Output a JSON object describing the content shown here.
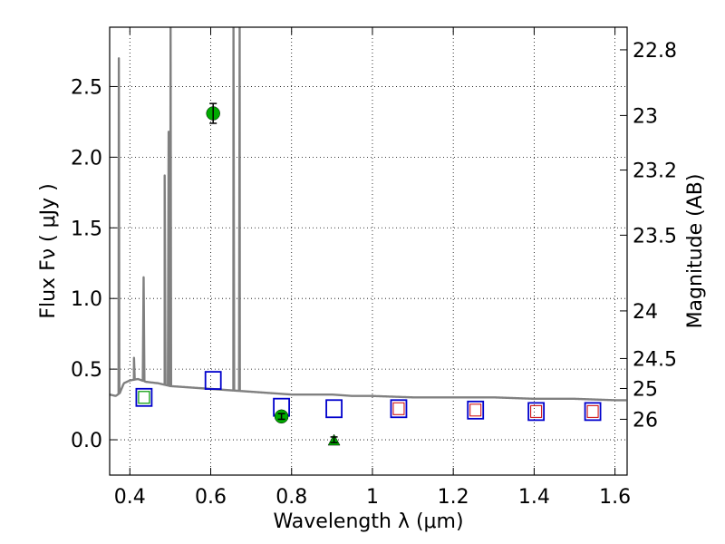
{
  "chart_data": {
    "type": "scatter",
    "xlabel": "Wavelength  λ (μm)",
    "ylabel": "Flux  Fν  ( μJy )",
    "y2label": "Magnitude (AB)",
    "xlim": [
      0.35,
      1.63
    ],
    "ylim": [
      -0.25,
      2.92
    ],
    "xticks": [
      0.4,
      0.6,
      0.8,
      1.0,
      1.2,
      1.4,
      1.6
    ],
    "xtick_labels": [
      "0.4",
      "0.6",
      "0.8",
      "1",
      "1.2",
      "1.4",
      "1.6"
    ],
    "yticks": [
      0.0,
      0.5,
      1.0,
      1.5,
      2.0,
      2.5
    ],
    "ytick_labels": [
      "0.0",
      "0.5",
      "1.0",
      "1.5",
      "2.0",
      "2.5"
    ],
    "y2ticks": [
      {
        "label": "22.8",
        "flux": 2.76
      },
      {
        "label": "23",
        "flux": 2.295
      },
      {
        "label": "23.2",
        "flux": 1.909
      },
      {
        "label": "23.5",
        "flux": 1.448
      },
      {
        "label": "24",
        "flux": 0.912
      },
      {
        "label": "24.5",
        "flux": 0.575
      },
      {
        "label": "25",
        "flux": 0.363
      },
      {
        "label": "26",
        "flux": 0.145
      }
    ],
    "grid": true,
    "grid_style": "dotted",
    "colors": {
      "sed": "#808080",
      "model_box": "#0000cc",
      "nir_inner": "#cc0000",
      "optical_inner": "#009900",
      "detection": "#00aa00",
      "errorbar": "#000000"
    },
    "sed_model": {
      "color": "#808080",
      "continuum": [
        [
          0.35,
          0.32
        ],
        [
          0.365,
          0.31
        ],
        [
          0.375,
          0.33
        ],
        [
          0.385,
          0.4
        ],
        [
          0.4,
          0.42
        ],
        [
          0.42,
          0.43
        ],
        [
          0.44,
          0.41
        ],
        [
          0.47,
          0.4
        ],
        [
          0.5,
          0.38
        ],
        [
          0.55,
          0.37
        ],
        [
          0.6,
          0.36
        ],
        [
          0.65,
          0.35
        ],
        [
          0.7,
          0.34
        ],
        [
          0.75,
          0.33
        ],
        [
          0.8,
          0.32
        ],
        [
          0.85,
          0.32
        ],
        [
          0.9,
          0.32
        ],
        [
          0.95,
          0.31
        ],
        [
          1.0,
          0.31
        ],
        [
          1.1,
          0.3
        ],
        [
          1.2,
          0.3
        ],
        [
          1.3,
          0.3
        ],
        [
          1.4,
          0.29
        ],
        [
          1.5,
          0.29
        ],
        [
          1.6,
          0.28
        ],
        [
          1.63,
          0.28
        ]
      ],
      "emission_lines": [
        {
          "x": 0.3727,
          "peak": 2.7
        },
        {
          "x": 0.4102,
          "peak": 0.58
        },
        {
          "x": 0.434,
          "peak": 1.15
        },
        {
          "x": 0.4861,
          "peak": 1.87
        },
        {
          "x": 0.4959,
          "peak": 2.18
        },
        {
          "x": 0.5007,
          "peak": 2.92
        },
        {
          "x": 0.6563,
          "peak": 2.92
        },
        {
          "x": 0.6716,
          "peak": 2.92
        }
      ]
    },
    "model_photometry": [
      {
        "x": 0.435,
        "y": 0.3,
        "inner": "optical"
      },
      {
        "x": 0.606,
        "y": 0.42,
        "inner": "none"
      },
      {
        "x": 0.775,
        "y": 0.23,
        "inner": "none"
      },
      {
        "x": 0.905,
        "y": 0.22,
        "inner": "none"
      },
      {
        "x": 1.065,
        "y": 0.22,
        "inner": "nir"
      },
      {
        "x": 1.255,
        "y": 0.21,
        "inner": "nir"
      },
      {
        "x": 1.405,
        "y": 0.2,
        "inner": "nir"
      },
      {
        "x": 1.545,
        "y": 0.2,
        "inner": "nir"
      }
    ],
    "observed_detections": [
      {
        "x": 0.606,
        "y": 2.31,
        "yerr": 0.07
      },
      {
        "x": 0.775,
        "y": 0.165,
        "yerr": 0.02
      }
    ],
    "observed_upper_limits": [
      {
        "x": 0.905,
        "y": 0.0,
        "yerr": 0.02
      }
    ]
  }
}
